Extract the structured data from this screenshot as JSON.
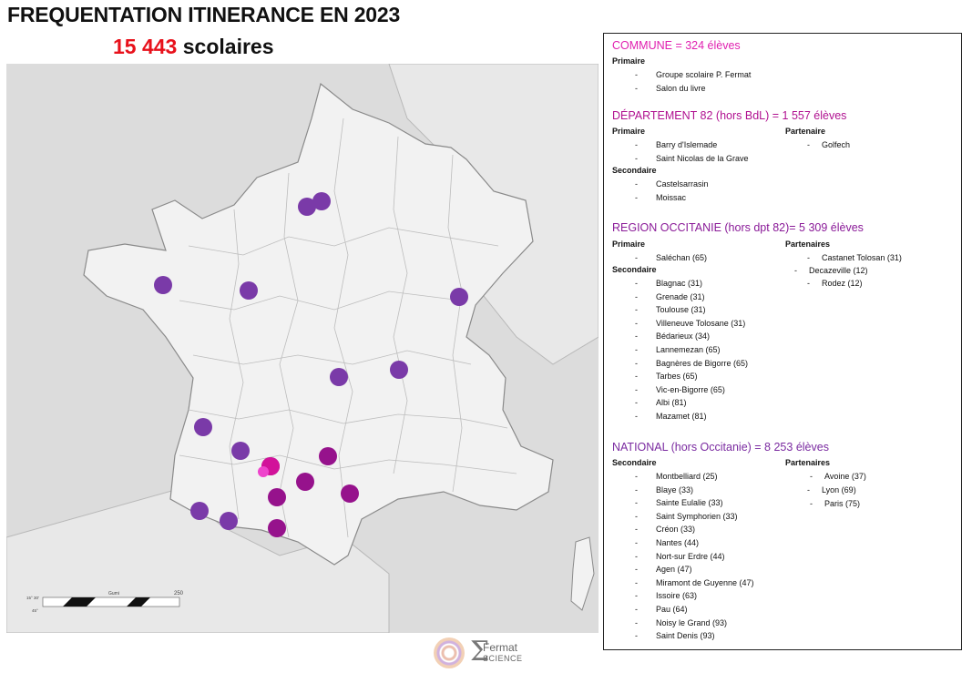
{
  "header": {
    "title": "FREQUENTATION ITINERANCE EN 2023",
    "subtitle_number": "15 443",
    "subtitle_text": "scolaires"
  },
  "map": {
    "land_color": "#f2f2f2",
    "sea_color": "#dcdcdc",
    "scale_label": "250",
    "scale_unit": "Gumi",
    "lat_labels": [
      "15° 30'",
      "45°"
    ],
    "markers": [
      {
        "group": "national",
        "color": "#7a3aa8"
      },
      {
        "group": "national",
        "color": "#7a3aa8"
      },
      {
        "group": "national",
        "color": "#7a3aa8"
      },
      {
        "group": "national",
        "color": "#7a3aa8"
      },
      {
        "group": "national",
        "color": "#7a3aa8"
      },
      {
        "group": "national",
        "color": "#7a3aa8"
      },
      {
        "group": "national",
        "color": "#7a3aa8"
      },
      {
        "group": "national",
        "color": "#7a3aa8"
      },
      {
        "group": "national",
        "color": "#7a3aa8"
      },
      {
        "group": "national",
        "color": "#7a3aa8"
      },
      {
        "group": "national",
        "color": "#7a3aa8"
      },
      {
        "group": "region",
        "color": "#96128c"
      },
      {
        "group": "region",
        "color": "#96128c"
      },
      {
        "group": "region",
        "color": "#96128c"
      },
      {
        "group": "region",
        "color": "#96128c"
      },
      {
        "group": "region",
        "color": "#96128c"
      },
      {
        "group": "region",
        "color": "#96128c"
      },
      {
        "group": "departement",
        "color": "#d2129a"
      },
      {
        "group": "commune",
        "color": "#ee44cc"
      }
    ]
  },
  "logo": {
    "mark": "Σ",
    "name": "Fermat",
    "sub": "SCIENCE"
  },
  "panel": {
    "commune": {
      "title": "COMMUNE = 324 élèves",
      "color": "#e020b0",
      "primaire_label": "Primaire",
      "primaire": [
        "Groupe scolaire P. Fermat",
        "Salon du livre"
      ]
    },
    "departement": {
      "title": "DÉPARTEMENT 82 (hors BdL) = 1 557 élèves",
      "color": "#b01090",
      "primaire_label": "Primaire",
      "primaire": [
        "Barry d'Islemade",
        "Saint Nicolas de la Grave"
      ],
      "secondaire_label": "Secondaire",
      "secondaire": [
        "Castelsarrasin",
        "Moissac"
      ],
      "partenaire_label": "Partenaire",
      "partenaires": [
        "Golfech"
      ]
    },
    "region": {
      "title": "REGION OCCITANIE (hors dpt 82)= 5 309 élèves",
      "color": "#8a1a98",
      "primaire_label": "Primaire",
      "primaire": [
        "Saléchan (65)"
      ],
      "secondaire_label": "Secondaire",
      "secondaire": [
        "Blagnac (31)",
        "Grenade (31)",
        "Toulouse (31)",
        "Villeneuve Tolosane (31)",
        "Bédarieux (34)",
        "Lannemezan (65)",
        "Bagnères de Bigorre (65)",
        "Tarbes (65)",
        "Vic-en-Bigorre (65)",
        "Albi (81)",
        "Mazamet (81)"
      ],
      "partenaires_label": "Partenaires",
      "partenaires": [
        "Castanet Tolosan (31)",
        "Decazeville (12)",
        "Rodez (12)"
      ]
    },
    "national": {
      "title": "NATIONAL (hors Occitanie) = 8 253 élèves",
      "color": "#7a2aa0",
      "secondaire_label": "Secondaire",
      "secondaire": [
        "Montbelliard (25)",
        "Blaye (33)",
        "Sainte Eulalie (33)",
        "Saint Symphorien (33)",
        "Créon (33)",
        "Nantes (44)",
        "Nort-sur Erdre (44)",
        "Agen (47)",
        "Miramont de Guyenne (47)",
        "Issoire (63)",
        "Pau (64)",
        "Noisy le Grand (93)",
        "Saint Denis (93)"
      ],
      "partenaires_label": "Partenaires",
      "partenaires": [
        "Avoine (37)",
        "Lyon (69)",
        "Paris (75)"
      ]
    }
  }
}
